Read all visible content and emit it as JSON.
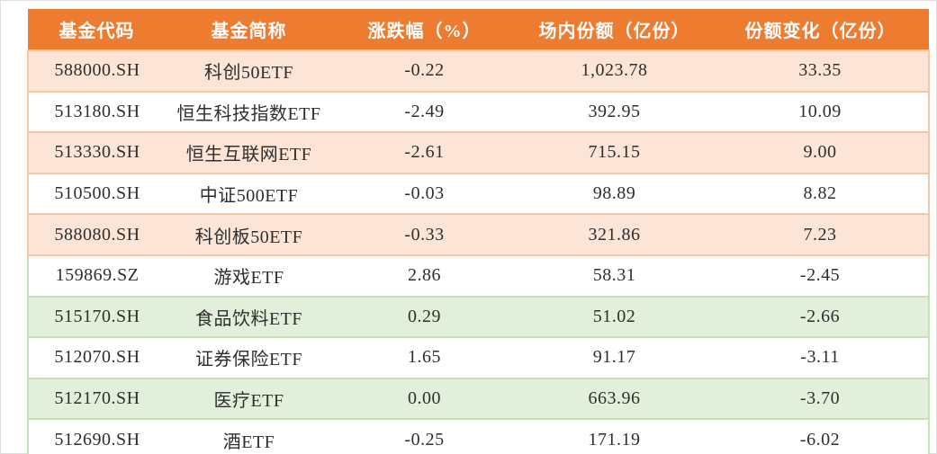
{
  "table": {
    "headers": [
      "基金代码",
      "基金简称",
      "涨跌幅（%）",
      "场内份额（亿份）",
      "份额变化（亿份）"
    ],
    "rows": [
      {
        "code": "588000.SH",
        "name": "科创50ETF",
        "change_pct": "-0.22",
        "market_shares": "1,023.78",
        "share_change": "33.35"
      },
      {
        "code": "513180.SH",
        "name": "恒生科技指数ETF",
        "change_pct": "-2.49",
        "market_shares": "392.95",
        "share_change": "10.09"
      },
      {
        "code": "513330.SH",
        "name": "恒生互联网ETF",
        "change_pct": "-2.61",
        "market_shares": "715.15",
        "share_change": "9.00"
      },
      {
        "code": "510500.SH",
        "name": "中证500ETF",
        "change_pct": "-0.03",
        "market_shares": "98.89",
        "share_change": "8.82"
      },
      {
        "code": "588080.SH",
        "name": "科创板50ETF",
        "change_pct": "-0.33",
        "market_shares": "321.86",
        "share_change": "7.23"
      },
      {
        "code": "159869.SZ",
        "name": "游戏ETF",
        "change_pct": "2.86",
        "market_shares": "58.31",
        "share_change": "-2.45"
      },
      {
        "code": "515170.SH",
        "name": "食品饮料ETF",
        "change_pct": "0.29",
        "market_shares": "51.02",
        "share_change": "-2.66"
      },
      {
        "code": "512070.SH",
        "name": "证券保险ETF",
        "change_pct": "1.65",
        "market_shares": "91.17",
        "share_change": "-3.11"
      },
      {
        "code": "512170.SH",
        "name": "医疗ETF",
        "change_pct": "0.00",
        "market_shares": "663.96",
        "share_change": "-3.70"
      },
      {
        "code": "512690.SH",
        "name": "酒ETF",
        "change_pct": "-0.25",
        "market_shares": "171.19",
        "share_change": "-6.02"
      }
    ]
  },
  "chart_data": {
    "type": "table",
    "columns": [
      "基金代码",
      "基金简称",
      "涨跌幅（%）",
      "场内份额（亿份）",
      "份额变化（亿份）"
    ],
    "rows": [
      [
        "588000.SH",
        "科创50ETF",
        -0.22,
        1023.78,
        33.35
      ],
      [
        "513180.SH",
        "恒生科技指数ETF",
        -2.49,
        392.95,
        10.09
      ],
      [
        "513330.SH",
        "恒生互联网ETF",
        -2.61,
        715.15,
        9.0
      ],
      [
        "510500.SH",
        "中证500ETF",
        -0.03,
        98.89,
        8.82
      ],
      [
        "588080.SH",
        "科创板50ETF",
        -0.33,
        321.86,
        7.23
      ],
      [
        "159869.SZ",
        "游戏ETF",
        2.86,
        58.31,
        -2.45
      ],
      [
        "515170.SH",
        "食品饮料ETF",
        0.29,
        51.02,
        -2.66
      ],
      [
        "512070.SH",
        "证券保险ETF",
        1.65,
        91.17,
        -3.11
      ],
      [
        "512170.SH",
        "医疗ETF",
        0.0,
        663.96,
        -3.7
      ],
      [
        "512690.SH",
        "酒ETF",
        -0.25,
        171.19,
        -6.02
      ]
    ],
    "layout_hints": {
      "sections": {
        "share_increase_rows": [
          0,
          1,
          2,
          3,
          4
        ],
        "share_decrease_rows": [
          5,
          6,
          7,
          8,
          9
        ]
      }
    }
  },
  "colors": {
    "header_bg": "#ED7C31",
    "header_text": "#FFFFFF",
    "row_peach": "#FCE4D6",
    "row_green": "#E2EFDA",
    "row_white": "#FFFFFF",
    "border_warm": "#F5C7A4",
    "border_cool": "#C6DFB4",
    "body_text": "#2E2E2E"
  }
}
